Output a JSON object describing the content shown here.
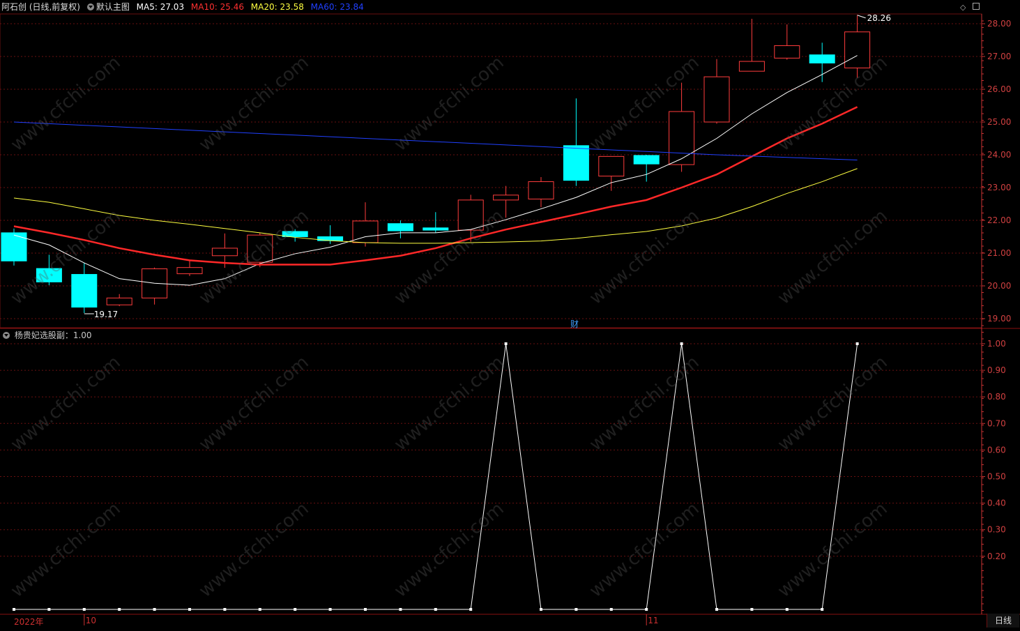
{
  "header": {
    "stock": "阿石创 (日线,前复权)",
    "main_chart_label": "默认主图",
    "ma": [
      {
        "label": "MA5: 27.03",
        "color": "#ffffff"
      },
      {
        "label": "MA10: 25.46",
        "color": "#ff3030"
      },
      {
        "label": "MA20: 23.58",
        "color": "#ffff40"
      },
      {
        "label": "MA60: 23.84",
        "color": "#2040ff"
      }
    ]
  },
  "sub_header": {
    "indicator": "杨贵妃选股副：1.00"
  },
  "period_button": "日线",
  "fin_marker": "财",
  "x_labels": [
    {
      "text": "2022年",
      "bar": -1
    },
    {
      "text": "10",
      "bar": 2
    },
    {
      "text": "11",
      "bar": 18
    }
  ],
  "colors": {
    "up": "#ff3c3c",
    "down": "#00ffff",
    "grid": "#6a1010",
    "axis": "#c83232"
  },
  "chart_data": [
    {
      "type": "candlestick",
      "title": "",
      "ylim": [
        18.8,
        28.3
      ],
      "yticks": [
        "19.00",
        "20.00",
        "21.00",
        "22.00",
        "23.00",
        "24.00",
        "25.00",
        "26.00",
        "27.00",
        "28.00"
      ],
      "annotations": [
        {
          "text": "19.17",
          "bar": 2,
          "value": 19.17
        },
        {
          "text": "28.26",
          "bar": 24,
          "value": 28.26
        }
      ],
      "candles": [
        {
          "o": 21.62,
          "h": 21.75,
          "l": 20.62,
          "c": 20.76
        },
        {
          "o": 20.53,
          "h": 20.95,
          "l": 20.02,
          "c": 20.12
        },
        {
          "o": 20.35,
          "h": 20.7,
          "l": 19.17,
          "c": 19.35
        },
        {
          "o": 19.42,
          "h": 19.75,
          "l": 19.38,
          "c": 19.63
        },
        {
          "o": 19.63,
          "h": 20.56,
          "l": 19.43,
          "c": 20.52
        },
        {
          "o": 20.37,
          "h": 20.78,
          "l": 20.3,
          "c": 20.56
        },
        {
          "o": 20.92,
          "h": 21.6,
          "l": 20.55,
          "c": 21.15
        },
        {
          "o": 20.72,
          "h": 21.62,
          "l": 20.57,
          "c": 21.55
        },
        {
          "o": 21.66,
          "h": 21.73,
          "l": 21.35,
          "c": 21.5
        },
        {
          "o": 21.5,
          "h": 21.85,
          "l": 21.28,
          "c": 21.38
        },
        {
          "o": 21.32,
          "h": 22.55,
          "l": 21.2,
          "c": 21.98
        },
        {
          "o": 21.9,
          "h": 22.0,
          "l": 21.45,
          "c": 21.68
        },
        {
          "o": 21.77,
          "h": 22.25,
          "l": 21.62,
          "c": 21.7
        },
        {
          "o": 21.7,
          "h": 22.78,
          "l": 21.35,
          "c": 22.62
        },
        {
          "o": 22.62,
          "h": 23.05,
          "l": 22.08,
          "c": 22.77
        },
        {
          "o": 22.65,
          "h": 23.32,
          "l": 22.4,
          "c": 23.18
        },
        {
          "o": 24.28,
          "h": 25.72,
          "l": 23.05,
          "c": 23.22
        },
        {
          "o": 23.35,
          "h": 23.95,
          "l": 22.9,
          "c": 23.95
        },
        {
          "o": 23.98,
          "h": 24.0,
          "l": 23.18,
          "c": 23.72
        },
        {
          "o": 23.7,
          "h": 26.2,
          "l": 23.48,
          "c": 25.32
        },
        {
          "o": 25.0,
          "h": 26.92,
          "l": 24.95,
          "c": 26.38
        },
        {
          "o": 26.55,
          "h": 28.15,
          "l": 26.55,
          "c": 26.85
        },
        {
          "o": 26.95,
          "h": 27.98,
          "l": 26.9,
          "c": 27.33
        },
        {
          "o": 27.05,
          "h": 27.42,
          "l": 26.22,
          "c": 26.8
        },
        {
          "o": 26.65,
          "h": 28.26,
          "l": 26.35,
          "c": 27.75
        }
      ],
      "series": [
        {
          "name": "MA5",
          "color": "#ffffff",
          "width": 1,
          "values": [
            21.55,
            21.25,
            20.7,
            20.22,
            20.08,
            20.02,
            20.22,
            20.68,
            20.98,
            21.18,
            21.5,
            21.62,
            21.62,
            21.72,
            22.02,
            22.35,
            22.7,
            23.15,
            23.4,
            23.88,
            24.5,
            25.25,
            25.9,
            26.45,
            27.03
          ]
        },
        {
          "name": "MA10",
          "color": "#ff2828",
          "width": 2.5,
          "values": [
            21.82,
            21.62,
            21.4,
            21.15,
            20.95,
            20.78,
            20.7,
            20.65,
            20.65,
            20.65,
            20.78,
            20.92,
            21.15,
            21.45,
            21.72,
            21.95,
            22.18,
            22.42,
            22.62,
            23.0,
            23.4,
            23.95,
            24.5,
            24.95,
            25.46
          ]
        },
        {
          "name": "MA20",
          "color": "#ffff40",
          "width": 1,
          "values": [
            22.68,
            22.55,
            22.35,
            22.15,
            22.0,
            21.88,
            21.75,
            21.62,
            21.48,
            21.38,
            21.32,
            21.3,
            21.3,
            21.32,
            21.34,
            21.37,
            21.45,
            21.56,
            21.66,
            21.83,
            22.07,
            22.42,
            22.82,
            23.18,
            23.58
          ]
        },
        {
          "name": "MA60",
          "color": "#2040ff",
          "width": 1,
          "values": [
            25.0,
            24.95,
            24.9,
            24.85,
            24.8,
            24.75,
            24.7,
            24.65,
            24.6,
            24.55,
            24.5,
            24.45,
            24.4,
            24.35,
            24.3,
            24.25,
            24.2,
            24.15,
            24.1,
            24.05,
            24.0,
            23.96,
            23.92,
            23.88,
            23.84
          ]
        }
      ]
    },
    {
      "type": "line",
      "title": "",
      "ylim": [
        0,
        1.0
      ],
      "yticks": [
        "0.20",
        "0.30",
        "0.40",
        "0.50",
        "0.60",
        "0.70",
        "0.80",
        "0.90",
        "1.00"
      ],
      "series": [
        {
          "name": "杨贵妃选股副",
          "color": "#ffffff",
          "values": [
            0,
            0,
            0,
            0,
            0,
            0,
            0,
            0,
            0,
            0,
            0,
            0,
            0,
            0,
            1,
            0,
            0,
            0,
            0,
            1,
            0,
            0,
            0,
            0,
            1
          ]
        }
      ]
    }
  ]
}
